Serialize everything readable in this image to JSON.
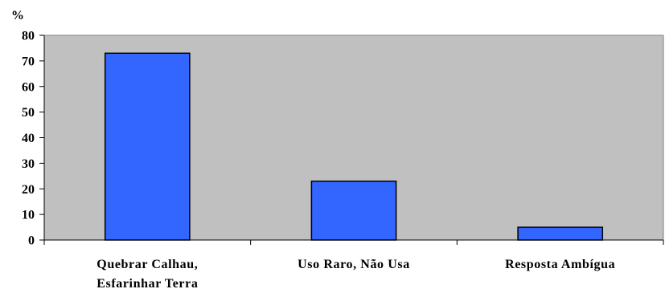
{
  "chart_data": {
    "type": "bar",
    "ylabel": "%",
    "ylim": [
      0,
      80
    ],
    "yticks": [
      0,
      10,
      20,
      30,
      40,
      50,
      60,
      70,
      80
    ],
    "categories": [
      [
        "Quebrar Calhau,",
        "Esfarinhar Terra"
      ],
      [
        "Uso Raro, Não Usa"
      ],
      [
        "Resposta Ambígua"
      ]
    ],
    "values": [
      73,
      23,
      5
    ],
    "grid": false,
    "legend": "none",
    "colors": {
      "bar": "#3366ff",
      "plot_background": "#c0c0c0",
      "axis": "#000000"
    }
  }
}
